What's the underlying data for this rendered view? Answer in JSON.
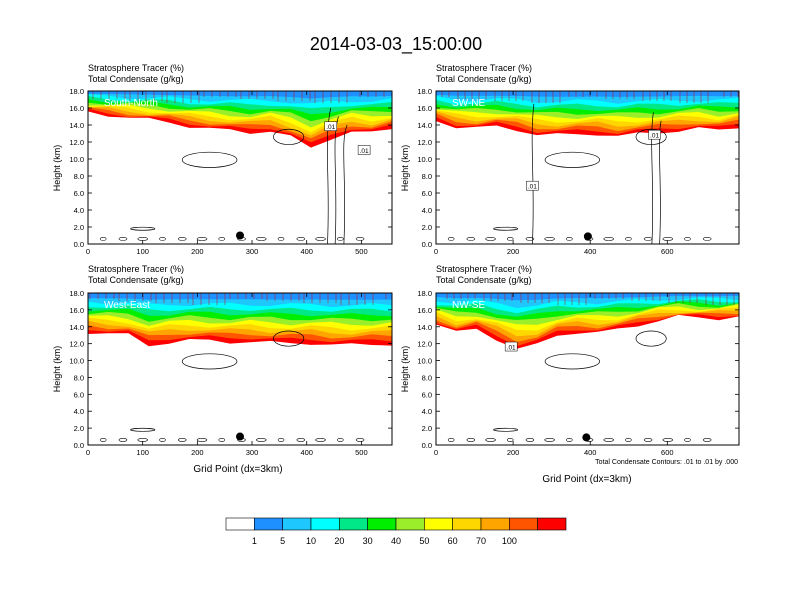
{
  "title": "2014-03-03_15:00:00",
  "colorbar": {
    "colors": [
      "#ffffff",
      "#1e90ff",
      "#1ec8ff",
      "#00ffff",
      "#00e887",
      "#00ee00",
      "#9aee2a",
      "#ffff00",
      "#ffd700",
      "#ffa500",
      "#ff5500",
      "#ff0000"
    ],
    "labels": [
      "1",
      "5",
      "10",
      "20",
      "30",
      "40",
      "50",
      "60",
      "70",
      "100"
    ]
  },
  "contour_note": "Total Condensate Contours: .01 to .01 by .000",
  "chart_data": [
    {
      "type": "heatmap",
      "title_line1": "Stratosphere Tracer   (%)",
      "title_line2": "Total Condensate   (g/kg)",
      "cross_section": "South-North",
      "ylabel": "Height (km)",
      "xlabel": "",
      "xlim": [
        0,
        556
      ],
      "xticks": [
        "0",
        "100",
        "200",
        "300",
        "400",
        "500"
      ],
      "xtick_values": [
        0,
        100,
        200,
        300,
        400,
        500
      ],
      "ylim": [
        0,
        18
      ],
      "yticks": [
        "0.0",
        "2.0",
        "4.0",
        "6.0",
        "8.0",
        "10.0",
        "12.0",
        "14.0",
        "16.0",
        "18.0"
      ],
      "ytick_values": [
        0,
        2,
        4,
        6,
        8,
        10,
        12,
        14,
        16,
        18
      ],
      "tracer_base_km": [
        15.5,
        15.2,
        14.9,
        14.6,
        14.3,
        13.9,
        13.6,
        13.3,
        13.1,
        13.4,
        12.6,
        11.2,
        12.5,
        13.3,
        13.0,
        13.5
      ],
      "contour_labels": [
        {
          "x": 444,
          "y": 13.8,
          "text": ".01"
        },
        {
          "x": 505,
          "y": 11.0,
          "text": ".01"
        }
      ],
      "marker": {
        "x": 278,
        "y": 1.0
      }
    },
    {
      "type": "heatmap",
      "title_line1": "Stratosphere Tracer   (%)",
      "title_line2": "Total Condensate   (g/kg)",
      "cross_section": "SW-NE",
      "ylabel": "Height (km)",
      "xlabel": "",
      "xlim": [
        0,
        786
      ],
      "xticks": [
        "0",
        "200",
        "400",
        "600"
      ],
      "xtick_values": [
        0,
        200,
        400,
        600
      ],
      "ylim": [
        0,
        18
      ],
      "yticks": [
        "0.0",
        "2.0",
        "4.0",
        "6.0",
        "8.0",
        "10.0",
        "12.0",
        "14.0",
        "16.0",
        "18.0"
      ],
      "ytick_values": [
        0,
        2,
        4,
        6,
        8,
        10,
        12,
        14,
        16,
        18
      ],
      "tracer_base_km": [
        14.6,
        13.8,
        13.6,
        13.8,
        13.5,
        12.9,
        12.8,
        12.9,
        13.0,
        12.7,
        12.9,
        13.1,
        13.4,
        13.6,
        13.3,
        13.8
      ],
      "contour_labels": [
        {
          "x": 250,
          "y": 6.8,
          "text": ".01"
        },
        {
          "x": 567,
          "y": 12.8,
          "text": ".01"
        }
      ],
      "marker": {
        "x": 394,
        "y": 0.9
      }
    },
    {
      "type": "heatmap",
      "title_line1": "Stratosphere Tracer   (%)",
      "title_line2": "Total Condensate   (g/kg)",
      "cross_section": "West-East",
      "ylabel": "Height (km)",
      "xlabel": "Grid Point (dx=3km)",
      "xlim": [
        0,
        556
      ],
      "xticks": [
        "0",
        "100",
        "200",
        "300",
        "400",
        "500"
      ],
      "xtick_values": [
        0,
        100,
        200,
        300,
        400,
        500
      ],
      "ylim": [
        0,
        18
      ],
      "yticks": [
        "0.0",
        "2.0",
        "4.0",
        "6.0",
        "8.0",
        "10.0",
        "12.0",
        "14.0",
        "16.0",
        "18.0"
      ],
      "ytick_values": [
        0,
        2,
        4,
        6,
        8,
        10,
        12,
        14,
        16,
        18
      ],
      "tracer_base_km": [
        13.4,
        13.2,
        13.0,
        11.8,
        12.2,
        12.4,
        12.3,
        12.2,
        12.3,
        12.1,
        12.0,
        12.1,
        11.9,
        11.8,
        11.9,
        12.0
      ],
      "contour_labels": [],
      "marker": {
        "x": 278,
        "y": 1.0
      }
    },
    {
      "type": "heatmap",
      "title_line1": "Stratosphere Tracer   (%)",
      "title_line2": "Total Condensate   (g/kg)",
      "cross_section": "NW-SE",
      "ylabel": "Height (km)",
      "xlabel": "Grid Point (dx=3km)",
      "xlim": [
        0,
        786
      ],
      "xticks": [
        "0",
        "200",
        "400",
        "600"
      ],
      "xtick_values": [
        0,
        200,
        400,
        600
      ],
      "ylim": [
        0,
        18
      ],
      "yticks": [
        "0.0",
        "2.0",
        "4.0",
        "6.0",
        "8.0",
        "10.0",
        "12.0",
        "14.0",
        "16.0",
        "18.0"
      ],
      "ytick_values": [
        0,
        2,
        4,
        6,
        8,
        10,
        12,
        14,
        16,
        18
      ],
      "tracer_base_km": [
        14.4,
        13.3,
        13.7,
        12.6,
        11.4,
        11.8,
        13.0,
        13.4,
        13.3,
        13.6,
        14.2,
        14.8,
        15.2,
        15.0,
        15.0,
        15.3
      ],
      "contour_labels": [
        {
          "x": 195,
          "y": 11.6,
          "text": ".01"
        }
      ],
      "marker": {
        "x": 390,
        "y": 0.9
      }
    }
  ]
}
